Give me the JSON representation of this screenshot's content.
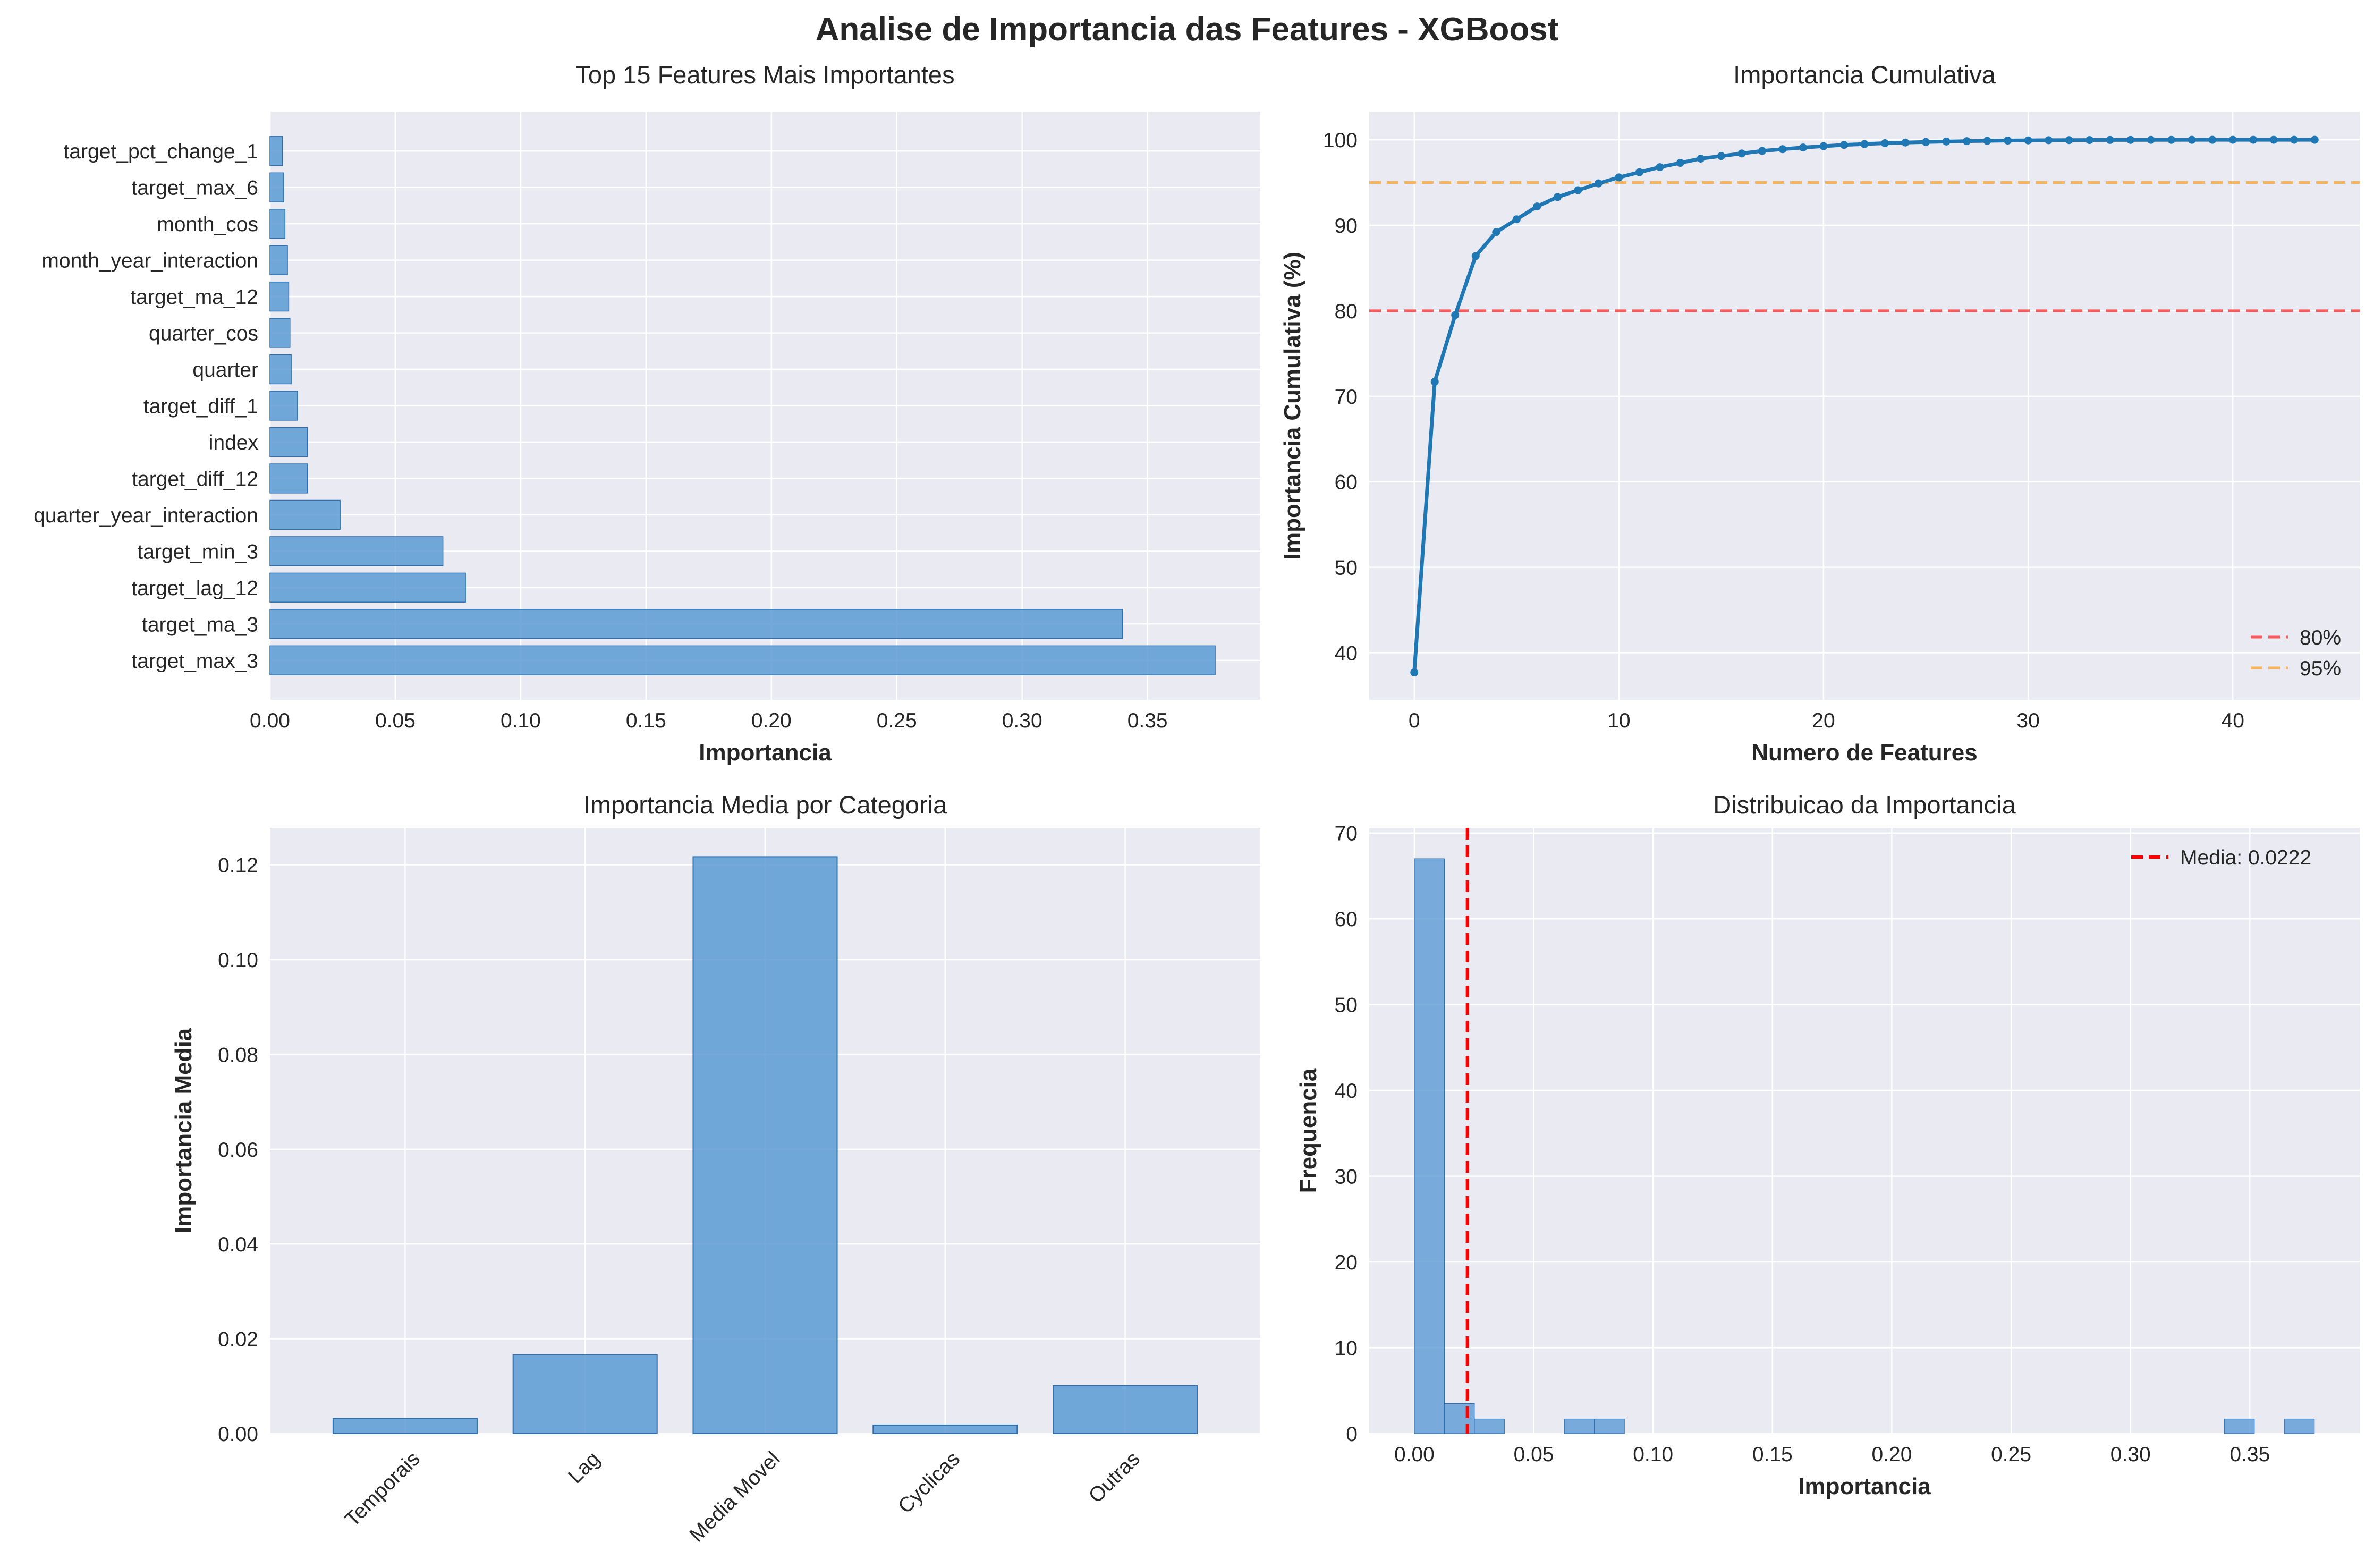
{
  "suptitle": "Analise de Importancia das Features - XGBoost",
  "colors": {
    "plot_bg": "#EAEAF2",
    "grid": "#FFFFFF",
    "bar_fill": "#5B9BD5",
    "bar_edge": "#2F6FAF",
    "line": "#1F77B4",
    "ref_80": "#FF3333",
    "ref_95": "#FFA533",
    "mean_line": "#FF0000"
  },
  "chart_data": [
    {
      "id": "top15",
      "type": "bar",
      "orientation": "horizontal",
      "title": "Top 15 Features Mais Importantes",
      "xlabel": "Importancia",
      "ylabel": "",
      "xlim": [
        0,
        0.395
      ],
      "xticks": [
        0.0,
        0.05,
        0.1,
        0.15,
        0.2,
        0.25,
        0.3,
        0.35
      ],
      "xtick_labels": [
        "0.00",
        "0.05",
        "0.10",
        "0.15",
        "0.20",
        "0.25",
        "0.30",
        "0.35"
      ],
      "categories": [
        "target_max_3",
        "target_ma_3",
        "target_lag_12",
        "target_min_3",
        "quarter_year_interaction",
        "target_diff_12",
        "index",
        "target_diff_1",
        "quarter",
        "quarter_cos",
        "target_ma_12",
        "month_year_interaction",
        "month_cos",
        "target_max_6",
        "target_pct_change_1"
      ],
      "values": [
        0.377,
        0.34,
        0.078,
        0.069,
        0.028,
        0.015,
        0.015,
        0.011,
        0.0085,
        0.008,
        0.0075,
        0.007,
        0.006,
        0.0055,
        0.005
      ],
      "grid": true
    },
    {
      "id": "cumulative",
      "type": "line",
      "title": "Importancia Cumulativa",
      "xlabel": "Numero de Features",
      "ylabel": "Importancia Cumulativa (%)",
      "xlim": [
        -2.2,
        46.2
      ],
      "ylim": [
        34.5,
        103.3
      ],
      "xticks": [
        0,
        10,
        20,
        30,
        40
      ],
      "xtick_labels": [
        "0",
        "10",
        "20",
        "30",
        "40"
      ],
      "yticks": [
        40,
        50,
        60,
        70,
        80,
        90,
        100
      ],
      "ytick_labels": [
        "40",
        "50",
        "60",
        "70",
        "80",
        "90",
        "100"
      ],
      "x": [
        0,
        1,
        2,
        3,
        4,
        5,
        6,
        7,
        8,
        9,
        10,
        11,
        12,
        13,
        14,
        15,
        16,
        17,
        18,
        19,
        20,
        21,
        22,
        23,
        24,
        25,
        26,
        27,
        28,
        29,
        30,
        31,
        32,
        33,
        34,
        35,
        36,
        37,
        38,
        39,
        40,
        41,
        42,
        43,
        44
      ],
      "y": [
        37.7,
        71.7,
        79.5,
        86.4,
        89.2,
        90.7,
        92.2,
        93.3,
        94.1,
        94.9,
        95.6,
        96.2,
        96.8,
        97.3,
        97.8,
        98.1,
        98.4,
        98.7,
        98.9,
        99.1,
        99.25,
        99.4,
        99.5,
        99.6,
        99.68,
        99.74,
        99.8,
        99.84,
        99.88,
        99.91,
        99.93,
        99.95,
        99.96,
        99.97,
        99.98,
        99.985,
        99.99,
        99.993,
        99.995,
        99.997,
        99.998,
        99.999,
        100.0,
        100.0,
        100.0
      ],
      "reference_lines": [
        {
          "y": 80,
          "label": "80%",
          "color": "#FF3333"
        },
        {
          "y": 95,
          "label": "95%",
          "color": "#FFA533"
        }
      ],
      "legend": [
        "80%",
        "95%"
      ],
      "legend_position": "lower-right",
      "grid": true
    },
    {
      "id": "category",
      "type": "bar",
      "title": "Importancia Media por Categoria",
      "xlabel": "",
      "ylabel": "Importancia Media",
      "ylim": [
        0,
        0.1278
      ],
      "yticks": [
        0.0,
        0.02,
        0.04,
        0.06,
        0.08,
        0.1,
        0.12
      ],
      "ytick_labels": [
        "0.00",
        "0.02",
        "0.04",
        "0.06",
        "0.08",
        "0.10",
        "0.12"
      ],
      "categories": [
        "Temporais",
        "Lag",
        "Media Movel",
        "Cyclicas",
        "Outras"
      ],
      "values": [
        0.0032,
        0.0166,
        0.1217,
        0.0018,
        0.0101
      ],
      "grid": true
    },
    {
      "id": "distribution",
      "type": "bar",
      "subtype": "histogram",
      "title": "Distribuicao da Importancia",
      "xlabel": "Importancia",
      "ylabel": "Frequencia",
      "xlim": [
        -0.0189,
        0.396
      ],
      "ylim": [
        0,
        70.6
      ],
      "xticks": [
        0.0,
        0.05,
        0.1,
        0.15,
        0.2,
        0.25,
        0.3,
        0.35
      ],
      "xtick_labels": [
        "0.00",
        "0.05",
        "0.10",
        "0.15",
        "0.20",
        "0.25",
        "0.30",
        "0.35"
      ],
      "yticks": [
        0,
        10,
        20,
        30,
        40,
        50,
        60,
        70
      ],
      "ytick_labels": [
        "0",
        "10",
        "20",
        "30",
        "40",
        "50",
        "60",
        "70"
      ],
      "bin_edges": [
        0.0,
        0.01257,
        0.02513,
        0.0377,
        0.05027,
        0.06283,
        0.0754,
        0.08797,
        0.10053,
        0.1131,
        0.12567,
        0.13823,
        0.1508,
        0.16337,
        0.17593,
        0.1885,
        0.20107,
        0.21363,
        0.2262,
        0.23877,
        0.25133,
        0.2639,
        0.27647,
        0.28903,
        0.3016,
        0.31417,
        0.32673,
        0.3393,
        0.35187,
        0.36443,
        0.377
      ],
      "counts": [
        67,
        3.5,
        1.7,
        0,
        0,
        1.7,
        1.7,
        0,
        0,
        0,
        0,
        0,
        0,
        0,
        0,
        0,
        0,
        0,
        0,
        0,
        0,
        0,
        0,
        0,
        0,
        0,
        0,
        1.7,
        0,
        1.7
      ],
      "mean_line": {
        "x": 0.0222,
        "label": "Media: 0.0222"
      },
      "legend": [
        "Media: 0.0222"
      ],
      "legend_position": "top-right",
      "grid": true
    }
  ]
}
